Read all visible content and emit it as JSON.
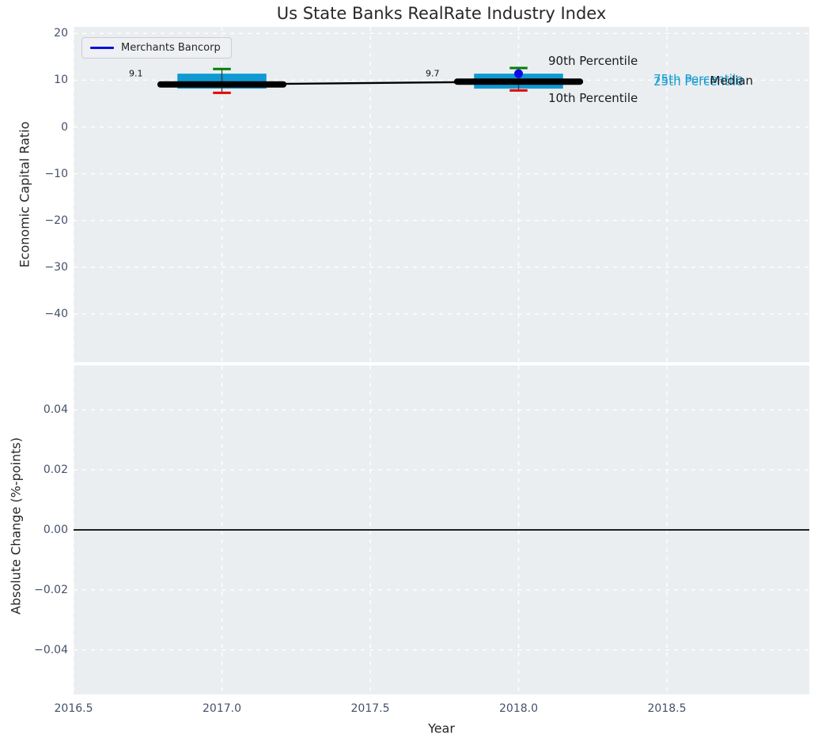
{
  "legend": {
    "label": "Merchants Bancorp"
  },
  "colors": {
    "figure_bg": "#ffffff",
    "axes_bg": "#eaeef1",
    "grid": "#ffffff",
    "box_fill": "#0f9ad3",
    "median": "#000000",
    "whisker": "#3a3a3a",
    "p90_cap": "#008000",
    "p10_cap": "#e50000",
    "company": "#0b0be6",
    "tick_label": "#44506b",
    "text": "#1a1a1a",
    "percentile_label": "#1b9cd0",
    "zero_line": "#000000"
  },
  "chart_data": [
    {
      "type": "box",
      "title": "Us State Banks RealRate Industry Index",
      "ylabel": "Economic Capital Ratio",
      "xlim": [
        2016.5,
        2018.98
      ],
      "ylim": [
        -50.3,
        21.4
      ],
      "grid": true,
      "legend_position": "upper left",
      "yticks": [
        20,
        10,
        0,
        -10,
        -20,
        -30,
        -40
      ],
      "ytick_labels": [
        "20",
        "10",
        "0",
        "−10",
        "−20",
        "−30",
        "−40"
      ],
      "xticks": [
        2016.5,
        2017.0,
        2017.5,
        2018.0,
        2018.5
      ],
      "box_halfwidth": 0.15,
      "median_halfwidth": 0.207,
      "cap_halfwidth": 0.03,
      "boxes": [
        {
          "x": 2017,
          "median": 9.1,
          "q1": 8.2,
          "q3": 11.4,
          "p10": 7.3,
          "p90": 12.4,
          "label": "9.1",
          "label_x": 2016.71,
          "label_y": 11.4
        },
        {
          "x": 2018,
          "median": 9.7,
          "q1": 8.2,
          "q3": 11.4,
          "p10": 7.8,
          "p90": 12.6,
          "label": "9.7",
          "label_x": 2017.71,
          "label_y": 11.5
        }
      ],
      "median_line": {
        "x": [
          2017,
          2018
        ],
        "y": [
          9.1,
          9.7
        ]
      },
      "company_series": {
        "name": "Merchants Bancorp",
        "points": [
          {
            "x": 2018,
            "y": 11.4
          }
        ]
      },
      "annotations": [
        {
          "text": "90th Percentile",
          "x": 2018.1,
          "y": 14.2,
          "color_key": "text",
          "anchor": "start"
        },
        {
          "text": "10th Percentile",
          "x": 2018.1,
          "y": 6.1,
          "color_key": "text",
          "anchor": "start"
        },
        {
          "text": "75th Percentile",
          "x": 2018.455,
          "y": 10.3,
          "color_key": "percentile_label",
          "anchor": "start"
        },
        {
          "text": "25th Percentile",
          "x": 2018.455,
          "y": 9.8,
          "color_key": "percentile_label",
          "anchor": "start"
        },
        {
          "text": "Median",
          "x": 2018.645,
          "y": 9.9,
          "color_key": "text",
          "anchor": "start"
        }
      ]
    },
    {
      "type": "line",
      "ylabel": "Absolute Change (%-points)",
      "xlabel": "Year",
      "xlim": [
        2016.5,
        2018.98
      ],
      "ylim": [
        -0.0548,
        0.0548
      ],
      "grid": true,
      "yticks": [
        0.04,
        0.02,
        0.0,
        -0.02,
        -0.04
      ],
      "ytick_labels": [
        "0.04",
        "0.02",
        "0.00",
        "−0.02",
        "−0.04"
      ],
      "xticks": [
        2016.5,
        2017.0,
        2017.5,
        2018.0,
        2018.5
      ],
      "xtick_labels": [
        "2016.5",
        "2017.0",
        "2017.5",
        "2018.0",
        "2018.5"
      ],
      "zero_line": 0.0,
      "series": []
    }
  ]
}
